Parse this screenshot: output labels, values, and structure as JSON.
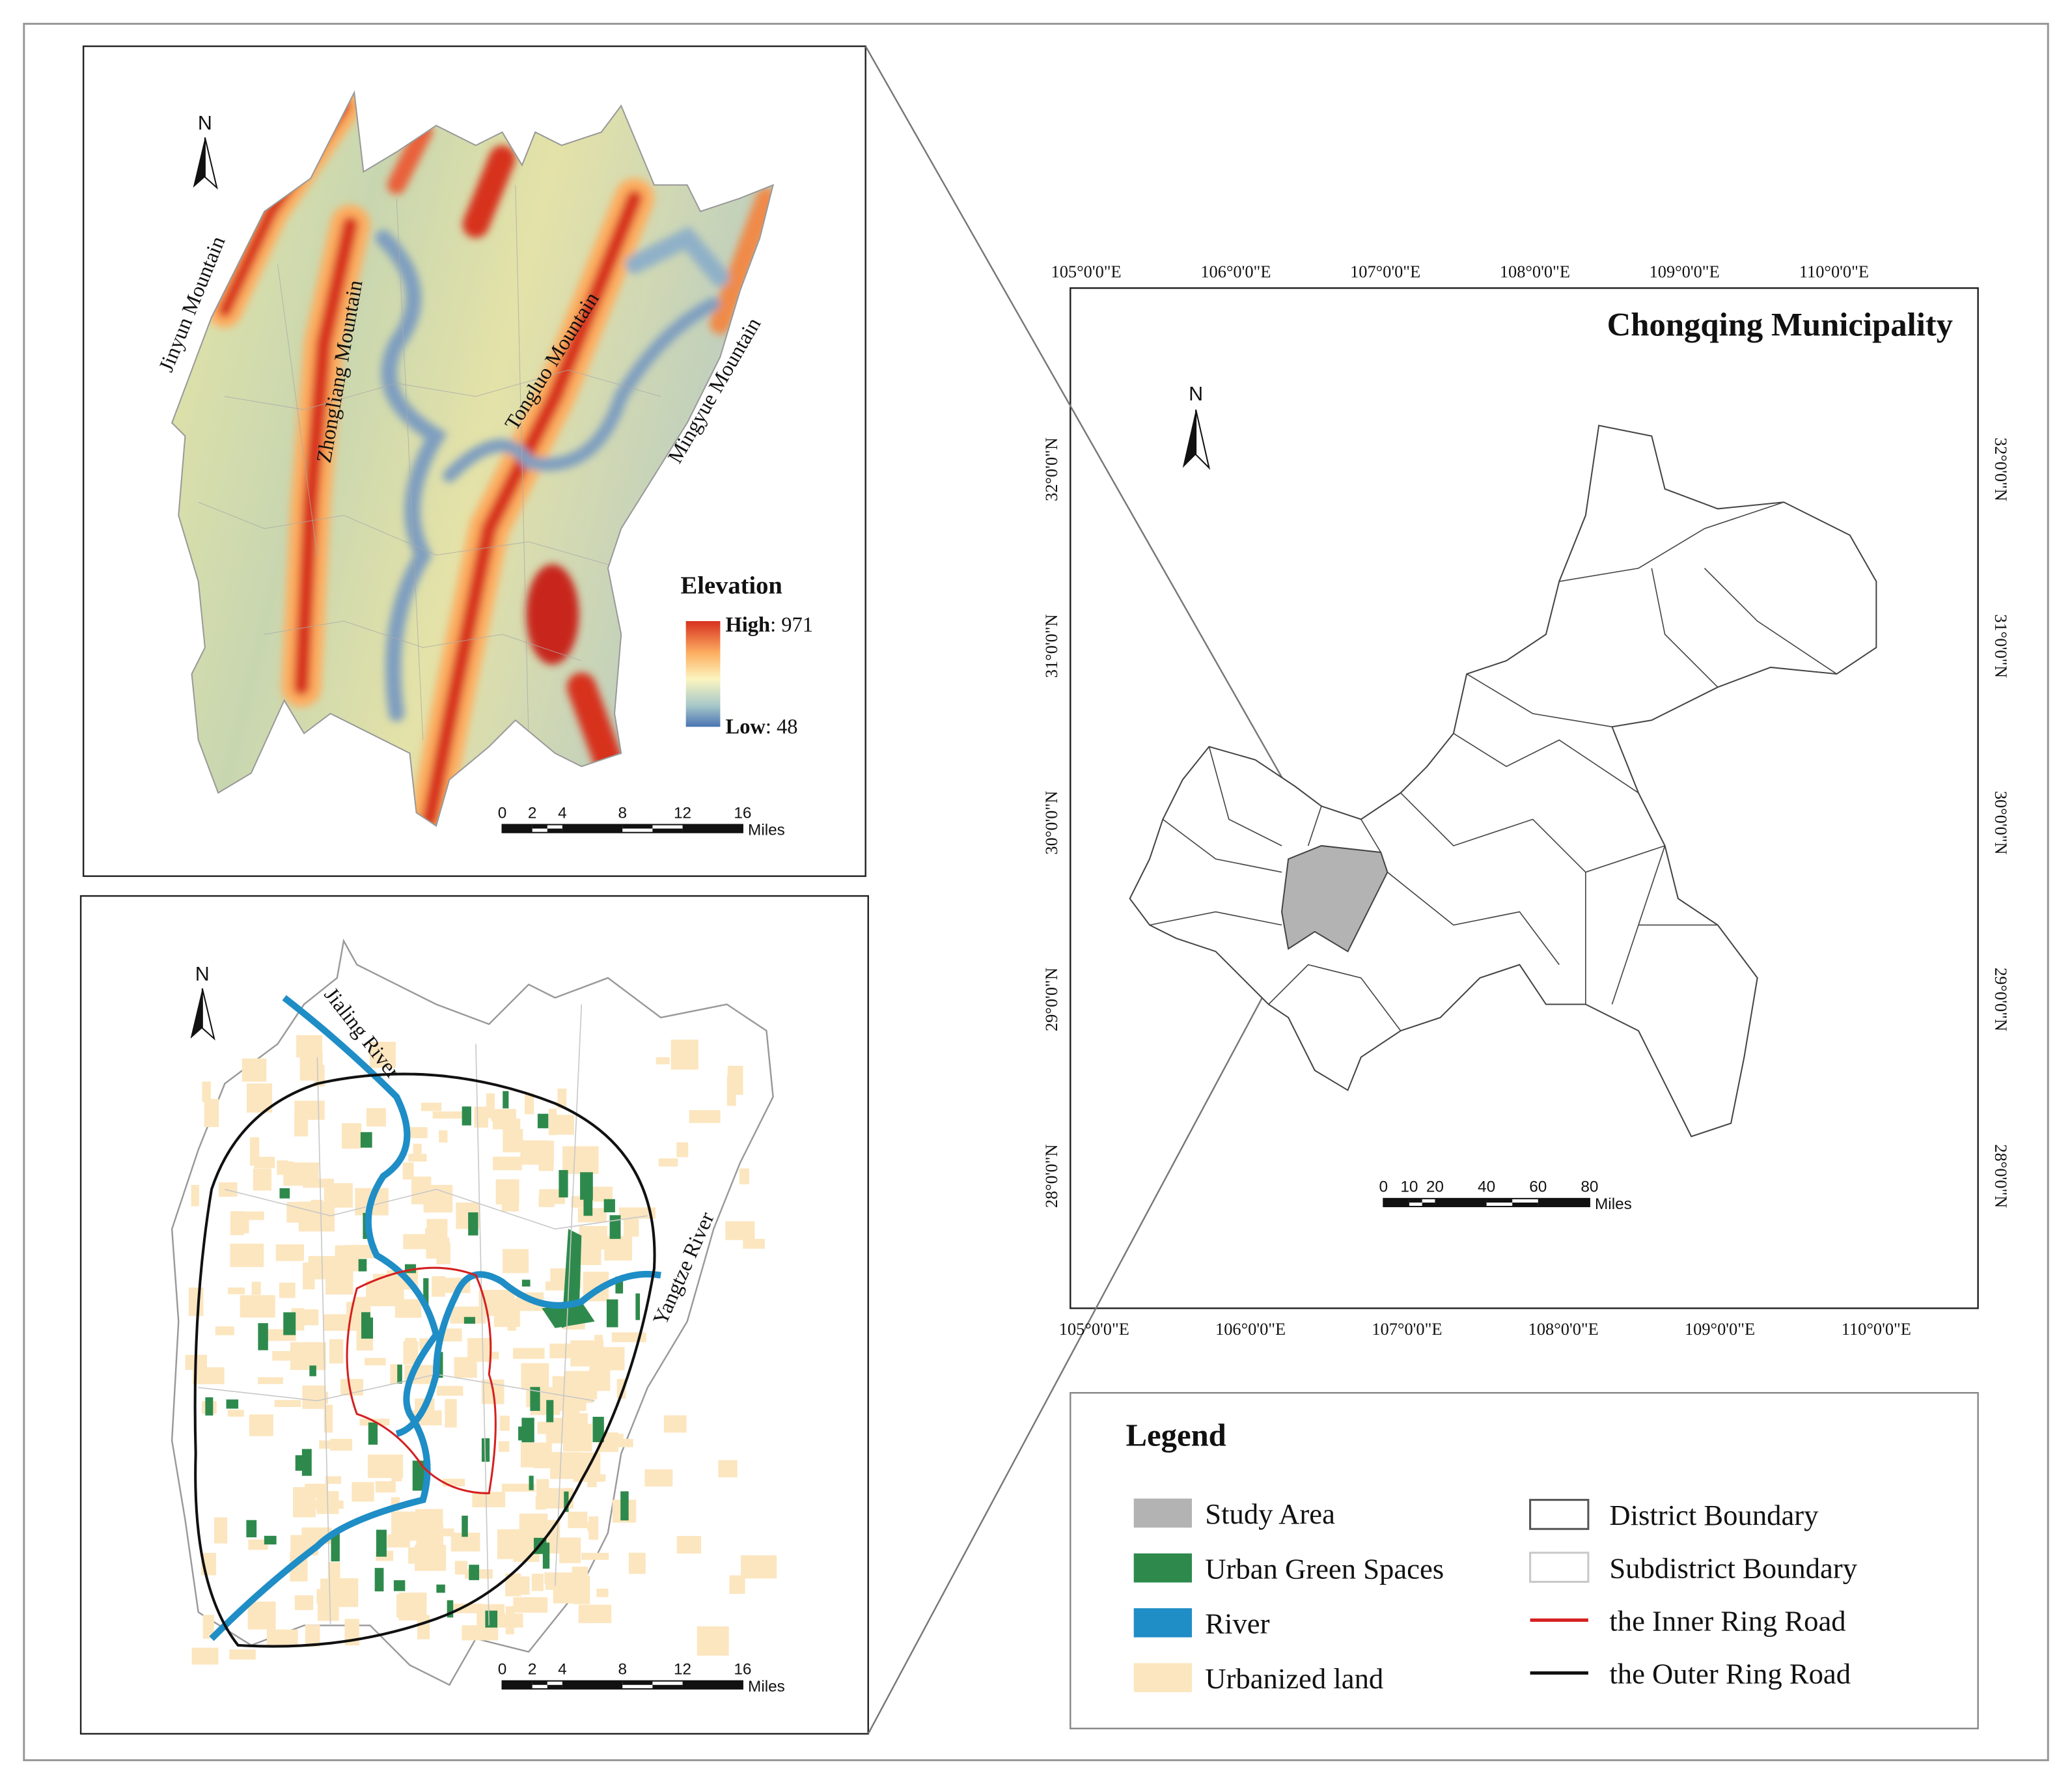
{
  "elevation_map": {
    "north": "N",
    "mountains": [
      "Jinyun Mountain",
      "Zhongliang Mountain",
      "Tongluo Mountain",
      "Mingyue Mountain"
    ],
    "legend_title": "Elevation",
    "high_label": "High",
    "high_value": ": 971",
    "low_label": "Low",
    "low_value": ": 48",
    "scale_ticks": [
      0,
      2,
      4,
      8,
      12,
      16
    ],
    "scale_unit": "Miles"
  },
  "landuse_map": {
    "north": "N",
    "rivers": [
      "Jialing River",
      "Yangtze River"
    ],
    "scale_ticks": [
      0,
      2,
      4,
      8,
      12,
      16
    ],
    "scale_unit": "Miles"
  },
  "overview_map": {
    "title": "Chongqing Municipality",
    "north": "N",
    "lon_ticks": [
      "105°0'0\"E",
      "106°0'0\"E",
      "107°0'0\"E",
      "108°0'0\"E",
      "109°0'0\"E",
      "110°0'0\"E"
    ],
    "lat_ticks": [
      "28°0'0\"N",
      "29°0'0\"N",
      "30°0'0\"N",
      "31°0'0\"N",
      "32°0'0\"N"
    ],
    "scale_ticks": [
      0,
      10,
      20,
      40,
      60,
      80
    ],
    "scale_unit": "Miles"
  },
  "legend": {
    "title": "Legend",
    "items": [
      {
        "label": "Study Area",
        "color": "#b3b3b3",
        "symbol": "fill"
      },
      {
        "label": "Urban Green Spaces",
        "color": "#2e8a4c",
        "symbol": "fill"
      },
      {
        "label": "River",
        "color": "#1f8dc6",
        "symbol": "fill"
      },
      {
        "label": "Urbanized land",
        "color": "#fce6bf",
        "symbol": "fill"
      },
      {
        "label": "District Boundary",
        "color": "#555555",
        "symbol": "outline"
      },
      {
        "label": "Subdistrict Boundary",
        "color": "#c8c8c8",
        "symbol": "outline"
      },
      {
        "label": "the Inner Ring Road",
        "color": "#d42020",
        "symbol": "line"
      },
      {
        "label": "the Outer Ring Road",
        "color": "#111111",
        "symbol": "line"
      }
    ]
  }
}
